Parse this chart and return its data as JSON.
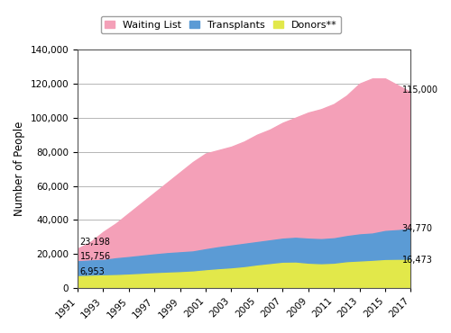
{
  "years": [
    1991,
    1993,
    1995,
    1997,
    1999,
    2001,
    2003,
    2005,
    2007,
    2009,
    2011,
    2013,
    2015,
    2017
  ],
  "years_all": [
    1991,
    1992,
    1993,
    1994,
    1995,
    1996,
    1997,
    1998,
    1999,
    2000,
    2001,
    2002,
    2003,
    2004,
    2005,
    2006,
    2007,
    2008,
    2009,
    2010,
    2011,
    2012,
    2013,
    2014,
    2015,
    2016,
    2017
  ],
  "waiting_list": [
    23198,
    27000,
    33000,
    38000,
    44000,
    50000,
    56000,
    62000,
    68000,
    74000,
    79000,
    81000,
    83000,
    86000,
    90000,
    93000,
    97000,
    100000,
    103000,
    105000,
    108000,
    113000,
    120000,
    123000,
    123000,
    119000,
    115000
  ],
  "transplants": [
    15756,
    16200,
    16500,
    17500,
    18200,
    19000,
    19800,
    20500,
    21000,
    21500,
    22800,
    24000,
    25000,
    26000,
    27000,
    28000,
    29000,
    29500,
    29000,
    28700,
    29200,
    30500,
    31500,
    32000,
    33500,
    34000,
    34770
  ],
  "donors": [
    6953,
    7200,
    7400,
    7600,
    7900,
    8300,
    8700,
    9000,
    9300,
    9700,
    10400,
    11000,
    11500,
    12200,
    13200,
    14000,
    14800,
    14900,
    14200,
    13900,
    14200,
    15100,
    15500,
    15900,
    16400,
    16500,
    16473
  ],
  "waiting_list_color": "#f4a0b8",
  "transplants_color": "#5b9bd5",
  "donors_color": "#e2e84a",
  "annotation_1991_waiting": "23,198",
  "annotation_1991_transplants": "15,756",
  "annotation_1991_donors": "6,953",
  "annotation_2017_waiting": "115,000",
  "annotation_2017_transplants": "34,770",
  "annotation_2017_donors": "16,473",
  "ylabel": "Number of People",
  "ylim": [
    0,
    140000
  ],
  "yticks": [
    0,
    20000,
    40000,
    60000,
    80000,
    100000,
    120000,
    140000
  ],
  "legend_labels": [
    "Waiting List",
    "Transplants",
    "Donors**"
  ],
  "background_color": "#ffffff",
  "border_color": "#888888",
  "tick_years": [
    1991,
    1993,
    1995,
    1997,
    1999,
    2001,
    2003,
    2005,
    2007,
    2009,
    2011,
    2013,
    2015,
    2017
  ]
}
